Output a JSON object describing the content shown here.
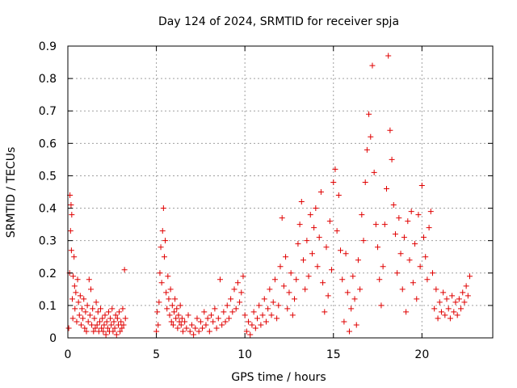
{
  "chart_data": {
    "type": "scatter",
    "title": "Day 124 of 2024, SRMTID for receiver spja",
    "xlabel": "GPS time / hours",
    "ylabel": "SRMTID / TECUs",
    "xlim": [
      0,
      24
    ],
    "ylim": [
      0,
      0.9
    ],
    "x_ticks": [
      0,
      5,
      10,
      15,
      20
    ],
    "y_ticks": [
      0,
      0.1,
      0.2,
      0.3,
      0.4,
      0.5,
      0.6,
      0.7,
      0.8,
      0.9
    ],
    "x_tick_labels": [
      "0",
      "5",
      "10",
      "15",
      "20"
    ],
    "y_tick_labels": [
      "0",
      "0.1",
      "0.2",
      "0.3",
      "0.4",
      "0.5",
      "0.6",
      "0.7",
      "0.8",
      "0.9"
    ],
    "grid": true,
    "marker": "+",
    "color": "#e00000",
    "series": [
      {
        "name": "SRMTID",
        "points": [
          [
            0.05,
            0.03
          ],
          [
            0.1,
            0.2
          ],
          [
            0.12,
            0.44
          ],
          [
            0.15,
            0.33
          ],
          [
            0.18,
            0.41
          ],
          [
            0.2,
            0.27
          ],
          [
            0.22,
            0.38
          ],
          [
            0.25,
            0.12
          ],
          [
            0.28,
            0.06
          ],
          [
            0.3,
            0.19
          ],
          [
            0.35,
            0.25
          ],
          [
            0.38,
            0.16
          ],
          [
            0.4,
            0.09
          ],
          [
            0.45,
            0.14
          ],
          [
            0.5,
            0.05
          ],
          [
            0.55,
            0.18
          ],
          [
            0.6,
            0.11
          ],
          [
            0.65,
            0.07
          ],
          [
            0.7,
            0.13
          ],
          [
            0.75,
            0.04
          ],
          [
            0.8,
            0.09
          ],
          [
            0.85,
            0.06
          ],
          [
            0.9,
            0.12
          ],
          [
            0.95,
            0.03
          ],
          [
            1.0,
            0.08
          ],
          [
            1.05,
            0.02
          ],
          [
            1.1,
            0.1
          ],
          [
            1.15,
            0.05
          ],
          [
            1.2,
            0.18
          ],
          [
            1.25,
            0.07
          ],
          [
            1.3,
            0.15
          ],
          [
            1.35,
            0.04
          ],
          [
            1.4,
            0.09
          ],
          [
            1.45,
            0.02
          ],
          [
            1.5,
            0.06
          ],
          [
            1.55,
            0.03
          ],
          [
            1.6,
            0.11
          ],
          [
            1.65,
            0.04
          ],
          [
            1.7,
            0.08
          ],
          [
            1.75,
            0.02
          ],
          [
            1.8,
            0.05
          ],
          [
            1.85,
            0.09
          ],
          [
            1.9,
            0.03
          ],
          [
            1.95,
            0.06
          ],
          [
            2.0,
            0.02
          ],
          [
            2.05,
            0.04
          ],
          [
            2.1,
            0.07
          ],
          [
            2.15,
            0.01
          ],
          [
            2.2,
            0.05
          ],
          [
            2.25,
            0.03
          ],
          [
            2.3,
            0.08
          ],
          [
            2.35,
            0.02
          ],
          [
            2.4,
            0.06
          ],
          [
            2.45,
            0.04
          ],
          [
            2.5,
            0.09
          ],
          [
            2.55,
            0.02
          ],
          [
            2.6,
            0.05
          ],
          [
            2.65,
            0.03
          ],
          [
            2.7,
            0.07
          ],
          [
            2.75,
            0.01
          ],
          [
            2.8,
            0.06
          ],
          [
            2.85,
            0.04
          ],
          [
            2.9,
            0.08
          ],
          [
            2.95,
            0.02
          ],
          [
            3.0,
            0.05
          ],
          [
            3.05,
            0.03
          ],
          [
            3.1,
            0.09
          ],
          [
            3.15,
            0.04
          ],
          [
            3.2,
            0.21
          ],
          [
            3.25,
            0.06
          ],
          [
            5.0,
            0.02
          ],
          [
            5.05,
            0.08
          ],
          [
            5.1,
            0.04
          ],
          [
            5.15,
            0.11
          ],
          [
            5.2,
            0.2
          ],
          [
            5.25,
            0.28
          ],
          [
            5.3,
            0.17
          ],
          [
            5.35,
            0.33
          ],
          [
            5.4,
            0.4
          ],
          [
            5.45,
            0.25
          ],
          [
            5.5,
            0.3
          ],
          [
            5.55,
            0.14
          ],
          [
            5.6,
            0.09
          ],
          [
            5.65,
            0.19
          ],
          [
            5.7,
            0.12
          ],
          [
            5.75,
            0.07
          ],
          [
            5.8,
            0.15
          ],
          [
            5.85,
            0.05
          ],
          [
            5.9,
            0.1
          ],
          [
            5.95,
            0.04
          ],
          [
            6.0,
            0.08
          ],
          [
            6.05,
            0.12
          ],
          [
            6.1,
            0.06
          ],
          [
            6.15,
            0.09
          ],
          [
            6.2,
            0.03
          ],
          [
            6.25,
            0.07
          ],
          [
            6.3,
            0.05
          ],
          [
            6.35,
            0.1
          ],
          [
            6.4,
            0.04
          ],
          [
            6.45,
            0.06
          ],
          [
            6.5,
            0.02
          ],
          [
            6.6,
            0.05
          ],
          [
            6.7,
            0.03
          ],
          [
            6.8,
            0.07
          ],
          [
            6.9,
            0.02
          ],
          [
            7.0,
            0.04
          ],
          [
            7.1,
            0.01
          ],
          [
            7.2,
            0.03
          ],
          [
            7.3,
            0.06
          ],
          [
            7.4,
            0.02
          ],
          [
            7.5,
            0.05
          ],
          [
            7.6,
            0.03
          ],
          [
            7.7,
            0.08
          ],
          [
            7.8,
            0.04
          ],
          [
            7.9,
            0.06
          ],
          [
            8.0,
            0.02
          ],
          [
            8.1,
            0.07
          ],
          [
            8.2,
            0.05
          ],
          [
            8.3,
            0.09
          ],
          [
            8.4,
            0.03
          ],
          [
            8.5,
            0.06
          ],
          [
            8.6,
            0.18
          ],
          [
            8.7,
            0.04
          ],
          [
            8.8,
            0.08
          ],
          [
            8.9,
            0.05
          ],
          [
            9.0,
            0.1
          ],
          [
            9.1,
            0.06
          ],
          [
            9.2,
            0.12
          ],
          [
            9.3,
            0.08
          ],
          [
            9.4,
            0.15
          ],
          [
            9.5,
            0.09
          ],
          [
            9.6,
            0.17
          ],
          [
            9.7,
            0.11
          ],
          [
            9.8,
            0.14
          ],
          [
            9.9,
            0.19
          ],
          [
            10.0,
            0.07
          ],
          [
            10.1,
            0.02
          ],
          [
            10.2,
            0.05
          ],
          [
            10.3,
            0.01
          ],
          [
            10.4,
            0.04
          ],
          [
            10.5,
            0.08
          ],
          [
            10.6,
            0.03
          ],
          [
            10.7,
            0.06
          ],
          [
            10.8,
            0.1
          ],
          [
            10.9,
            0.04
          ],
          [
            11.0,
            0.07
          ],
          [
            11.1,
            0.12
          ],
          [
            11.2,
            0.05
          ],
          [
            11.3,
            0.09
          ],
          [
            11.4,
            0.15
          ],
          [
            11.5,
            0.07
          ],
          [
            11.6,
            0.11
          ],
          [
            11.7,
            0.18
          ],
          [
            11.8,
            0.06
          ],
          [
            11.9,
            0.1
          ],
          [
            12.0,
            0.22
          ],
          [
            12.1,
            0.37
          ],
          [
            12.2,
            0.16
          ],
          [
            12.3,
            0.25
          ],
          [
            12.4,
            0.09
          ],
          [
            12.5,
            0.14
          ],
          [
            12.6,
            0.2
          ],
          [
            12.7,
            0.07
          ],
          [
            12.8,
            0.12
          ],
          [
            12.9,
            0.18
          ],
          [
            13.0,
            0.29
          ],
          [
            13.1,
            0.35
          ],
          [
            13.2,
            0.42
          ],
          [
            13.3,
            0.24
          ],
          [
            13.4,
            0.15
          ],
          [
            13.5,
            0.3
          ],
          [
            13.6,
            0.19
          ],
          [
            13.7,
            0.38
          ],
          [
            13.8,
            0.26
          ],
          [
            13.9,
            0.34
          ],
          [
            14.0,
            0.4
          ],
          [
            14.1,
            0.22
          ],
          [
            14.2,
            0.31
          ],
          [
            14.3,
            0.45
          ],
          [
            14.4,
            0.17
          ],
          [
            14.5,
            0.08
          ],
          [
            14.6,
            0.28
          ],
          [
            14.7,
            0.13
          ],
          [
            14.8,
            0.36
          ],
          [
            14.9,
            0.21
          ],
          [
            15.0,
            0.48
          ],
          [
            15.1,
            0.52
          ],
          [
            15.2,
            0.33
          ],
          [
            15.3,
            0.44
          ],
          [
            15.4,
            0.27
          ],
          [
            15.5,
            0.18
          ],
          [
            15.6,
            0.05
          ],
          [
            15.7,
            0.26
          ],
          [
            15.8,
            0.14
          ],
          [
            15.9,
            0.02
          ],
          [
            16.0,
            0.09
          ],
          [
            16.1,
            0.19
          ],
          [
            16.2,
            0.12
          ],
          [
            16.3,
            0.04
          ],
          [
            16.4,
            0.24
          ],
          [
            16.5,
            0.15
          ],
          [
            16.6,
            0.38
          ],
          [
            16.7,
            0.3
          ],
          [
            16.8,
            0.48
          ],
          [
            16.9,
            0.58
          ],
          [
            17.0,
            0.69
          ],
          [
            17.1,
            0.62
          ],
          [
            17.2,
            0.84
          ],
          [
            17.3,
            0.51
          ],
          [
            17.4,
            0.35
          ],
          [
            17.5,
            0.28
          ],
          [
            17.6,
            0.18
          ],
          [
            17.7,
            0.1
          ],
          [
            17.8,
            0.22
          ],
          [
            17.9,
            0.35
          ],
          [
            18.0,
            0.46
          ],
          [
            18.1,
            0.87
          ],
          [
            18.2,
            0.64
          ],
          [
            18.3,
            0.55
          ],
          [
            18.4,
            0.41
          ],
          [
            18.5,
            0.32
          ],
          [
            18.6,
            0.2
          ],
          [
            18.7,
            0.37
          ],
          [
            18.8,
            0.26
          ],
          [
            18.9,
            0.15
          ],
          [
            19.0,
            0.31
          ],
          [
            19.1,
            0.08
          ],
          [
            19.2,
            0.36
          ],
          [
            19.3,
            0.24
          ],
          [
            19.4,
            0.39
          ],
          [
            19.5,
            0.17
          ],
          [
            19.6,
            0.29
          ],
          [
            19.7,
            0.12
          ],
          [
            19.8,
            0.38
          ],
          [
            19.9,
            0.22
          ],
          [
            20.0,
            0.47
          ],
          [
            20.1,
            0.31
          ],
          [
            20.2,
            0.25
          ],
          [
            20.3,
            0.18
          ],
          [
            20.4,
            0.34
          ],
          [
            20.5,
            0.39
          ],
          [
            20.6,
            0.2
          ],
          [
            20.7,
            0.09
          ],
          [
            20.8,
            0.15
          ],
          [
            20.9,
            0.06
          ],
          [
            21.0,
            0.11
          ],
          [
            21.1,
            0.08
          ],
          [
            21.2,
            0.14
          ],
          [
            21.3,
            0.07
          ],
          [
            21.4,
            0.12
          ],
          [
            21.5,
            0.09
          ],
          [
            21.6,
            0.06
          ],
          [
            21.7,
            0.13
          ],
          [
            21.8,
            0.08
          ],
          [
            21.9,
            0.11
          ],
          [
            22.0,
            0.07
          ],
          [
            22.1,
            0.12
          ],
          [
            22.2,
            0.09
          ],
          [
            22.3,
            0.14
          ],
          [
            22.4,
            0.11
          ],
          [
            22.5,
            0.16
          ],
          [
            22.6,
            0.13
          ],
          [
            22.7,
            0.19
          ]
        ]
      }
    ]
  }
}
